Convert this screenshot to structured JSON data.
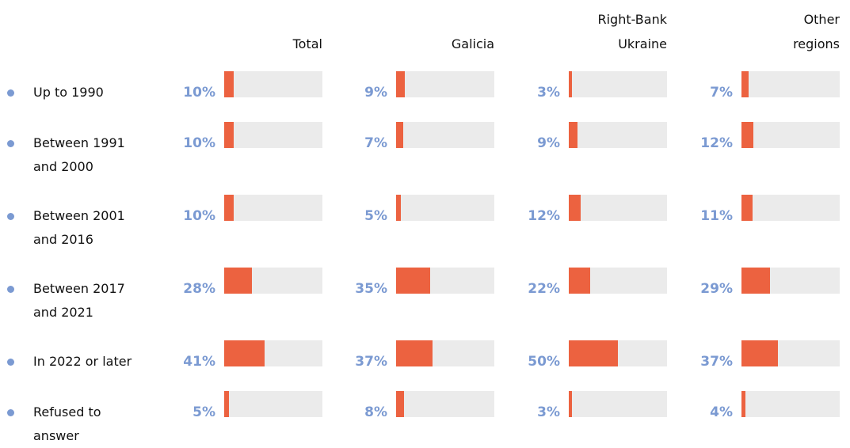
{
  "chart_data": {
    "type": "bar",
    "categories": [
      "Up to 1990",
      "Between 1991 and 2000",
      "Between 2001 and 2016",
      "Between 2017 and 2021",
      "In 2022 or later",
      "Refused to answer"
    ],
    "xlim": [
      0,
      100
    ],
    "track_color": "#ebebeb",
    "label_color": "#7b9ad2",
    "series": [
      {
        "name": "Total",
        "color": "#ec6240",
        "values": [
          10,
          10,
          10,
          28,
          41,
          5
        ],
        "value_labels": [
          "10%",
          "10%",
          "10%",
          "28%",
          "41%",
          "5%"
        ]
      },
      {
        "name": "Galicia",
        "color": "#ec6240",
        "values": [
          9,
          7,
          5,
          35,
          37,
          8
        ],
        "value_labels": [
          "9%",
          "7%",
          "5%",
          "35%",
          "37%",
          "8%"
        ]
      },
      {
        "name": "Right-Bank Ukraine",
        "color": "#ec6240",
        "values": [
          3,
          9,
          12,
          22,
          50,
          3
        ],
        "value_labels": [
          "3%",
          "9%",
          "12%",
          "22%",
          "50%",
          "3%"
        ]
      },
      {
        "name": "Other regions",
        "color": "#ec6240",
        "values": [
          7,
          12,
          11,
          29,
          37,
          4
        ],
        "value_labels": [
          "7%",
          "12%",
          "11%",
          "29%",
          "37%",
          "4%"
        ]
      }
    ]
  }
}
